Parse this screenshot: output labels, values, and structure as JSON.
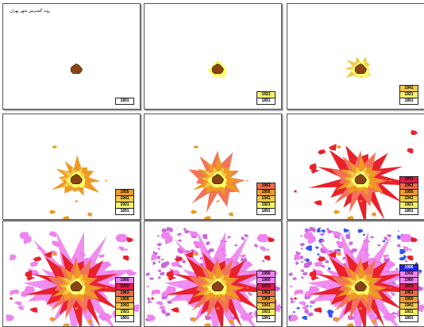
{
  "title": "روند گسترش شهر تهران",
  "colors": {
    "1891": "#8b4513",
    "1921": "#ffff66",
    "1941": "#f2c84b",
    "1955": "#ee9a22",
    "1963": "#f2735a",
    "1972": "#e8212b",
    "1980": "#ee82ee",
    "1990": "#cc66dd",
    "1996": "#3355ee"
  },
  "legend_bg": {
    "1891": "#ffffff",
    "1921": "#f6f36a",
    "1941": "#f2c84b",
    "1955": "#ef9a2d",
    "1963": "#ee6a4a",
    "1972": "#e31b4a",
    "1980": "#ee82ee",
    "1990": "#ee82ee",
    "1996": "#2222ee"
  },
  "panels": [
    {
      "years": [
        "1891"
      ]
    },
    {
      "years": [
        "1921",
        "1891"
      ]
    },
    {
      "years": [
        "1941",
        "1921",
        "1891"
      ]
    },
    {
      "years": [
        "1955",
        "1941",
        "1921",
        "1891"
      ]
    },
    {
      "years": [
        "1963",
        "1955",
        "1941",
        "1921",
        "1891"
      ]
    },
    {
      "years": [
        "1972",
        "1963",
        "1955",
        "1941",
        "1921",
        "1891"
      ]
    },
    {
      "years": [
        "1980",
        "1972",
        "1963",
        "1955",
        "1941",
        "1921",
        "1891"
      ]
    },
    {
      "years": [
        "1990",
        "1980",
        "1972",
        "1963",
        "1955",
        "1941",
        "1921",
        "1891"
      ]
    },
    {
      "years": [
        "1996",
        "1990",
        "1980",
        "1972",
        "1963",
        "1955",
        "1941",
        "1921",
        "1891"
      ]
    }
  ]
}
